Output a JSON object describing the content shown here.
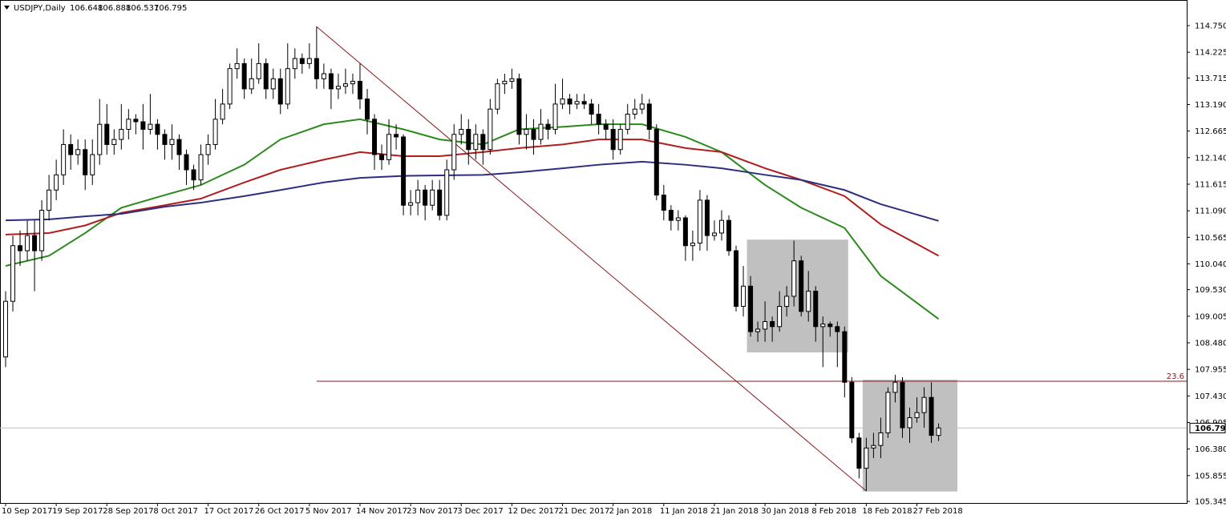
{
  "chart_data": {
    "type": "candlestick",
    "symbol": "USDJPY,Daily",
    "categories": [
      "10 Sep 2017",
      null,
      null,
      null,
      null,
      null,
      null,
      "19 Sep 2017",
      null,
      null,
      null,
      null,
      null,
      null,
      "28 Sep 2017",
      null,
      null,
      null,
      null,
      null,
      null,
      "8 Oct 2017",
      null,
      null,
      null,
      null,
      null,
      null,
      "17 Oct 2017",
      null,
      null,
      null,
      null,
      null,
      null,
      "26 Oct 2017",
      null,
      null,
      null,
      null,
      null,
      null,
      "5 Nov 2017",
      null,
      null,
      null,
      null,
      null,
      null,
      "14 Nov 2017",
      null,
      null,
      null,
      null,
      null,
      null,
      "23 Nov 2017",
      null,
      null,
      null,
      null,
      null,
      null,
      "3 Dec 2017",
      null,
      null,
      null,
      null,
      null,
      null,
      "12 Dec 2017",
      null,
      null,
      null,
      null,
      null,
      null,
      "21 Dec 2017",
      null,
      null,
      null,
      null,
      null,
      null,
      "2 Jan 2018",
      null,
      null,
      null,
      null,
      null,
      null,
      "11 Jan 2018",
      null,
      null,
      null,
      null,
      null,
      null,
      "21 Jan 2018",
      null,
      null,
      null,
      null,
      null,
      null,
      "30 Jan 2018",
      null,
      null,
      null,
      null,
      null,
      null,
      "8 Feb 2018",
      null,
      null,
      null,
      null,
      null,
      null,
      "18 Feb 2018",
      null,
      null,
      null,
      null,
      null,
      null,
      "27 Feb 2018",
      null,
      null,
      null
    ],
    "open": [
      108.2,
      109.3,
      110.4,
      110.3,
      110.6,
      110.3,
      111.1,
      111.5,
      111.8,
      112.4,
      112.2,
      112.3,
      111.8,
      112.2,
      112.8,
      112.4,
      112.5,
      112.7,
      112.9,
      112.85,
      112.7,
      112.8,
      112.6,
      112.4,
      112.5,
      112.2,
      111.9,
      111.7,
      112.2,
      112.4,
      112.9,
      113.2,
      113.9,
      114.0,
      113.5,
      113.7,
      114.0,
      113.5,
      113.7,
      113.2,
      113.9,
      114.1,
      114.0,
      114.1,
      113.7,
      113.8,
      113.5,
      113.55,
      113.6,
      113.65,
      113.3,
      112.9,
      112.2,
      112.1,
      112.6,
      112.55,
      111.2,
      111.25,
      111.5,
      111.2,
      111.5,
      111.0,
      111.9,
      112.6,
      112.7,
      112.3,
      112.6,
      112.3,
      113.1,
      113.6,
      113.65,
      113.7,
      112.6,
      112.7,
      112.5,
      112.8,
      112.7,
      113.2,
      113.3,
      113.2,
      113.25,
      113.2,
      113.0,
      112.8,
      112.7,
      112.3,
      112.7,
      113.0,
      113.1,
      113.2,
      112.7,
      111.4,
      111.1,
      110.9,
      110.95,
      110.4,
      110.45,
      111.3,
      110.6,
      110.65,
      110.9,
      110.3,
      109.2,
      109.6,
      108.7,
      108.75,
      108.9,
      108.8,
      109.2,
      109.4,
      110.1,
      109.1,
      109.5,
      108.8,
      108.85,
      108.8,
      108.7,
      107.7,
      106.6,
      106.0,
      106.4,
      106.45,
      106.7,
      107.5,
      107.7,
      106.8,
      107.0,
      107.1,
      107.4,
      106.648
    ],
    "high": [
      109.5,
      110.6,
      110.7,
      110.9,
      110.9,
      111.3,
      111.8,
      112.1,
      112.7,
      112.6,
      112.5,
      112.5,
      112.5,
      113.3,
      113.2,
      112.7,
      113.2,
      113.1,
      113.0,
      113.2,
      113.4,
      112.9,
      112.7,
      112.8,
      112.6,
      112.3,
      112.0,
      112.4,
      112.6,
      113.3,
      113.5,
      114.0,
      114.3,
      114.1,
      114.1,
      114.4,
      114.1,
      113.9,
      113.9,
      114.4,
      114.3,
      114.2,
      114.4,
      114.73,
      114.0,
      113.9,
      113.8,
      113.9,
      113.8,
      114.0,
      113.5,
      113.0,
      112.4,
      112.9,
      112.8,
      112.6,
      111.5,
      111.7,
      111.6,
      111.7,
      111.7,
      112.1,
      112.8,
      113.0,
      112.9,
      112.8,
      112.7,
      113.3,
      113.7,
      113.8,
      113.9,
      113.8,
      113.0,
      112.9,
      113.1,
      112.9,
      113.6,
      113.7,
      113.4,
      113.4,
      113.4,
      113.3,
      113.2,
      112.9,
      112.9,
      112.8,
      113.2,
      113.3,
      113.4,
      113.3,
      112.8,
      111.6,
      111.2,
      111.1,
      111.0,
      110.7,
      111.5,
      111.4,
      110.9,
      111.1,
      111.0,
      110.4,
      110.0,
      109.8,
      108.9,
      109.3,
      109.0,
      109.5,
      109.6,
      110.5,
      110.2,
      109.9,
      109.6,
      109.0,
      108.9,
      108.9,
      108.8,
      107.8,
      106.7,
      106.6,
      106.7,
      107.0,
      107.6,
      107.85,
      107.8,
      107.2,
      107.4,
      107.6,
      107.7,
      106.888
    ],
    "low": [
      108.0,
      109.1,
      110.0,
      110.1,
      109.5,
      110.1,
      110.9,
      111.3,
      111.6,
      111.9,
      112.0,
      111.5,
      111.6,
      112.0,
      112.2,
      112.2,
      112.3,
      112.5,
      112.6,
      112.3,
      112.6,
      112.3,
      112.1,
      112.1,
      111.9,
      111.6,
      111.5,
      111.6,
      112.0,
      112.3,
      112.8,
      113.1,
      113.7,
      113.3,
      113.4,
      113.6,
      113.3,
      113.3,
      113.0,
      113.1,
      113.7,
      113.8,
      113.9,
      113.5,
      113.5,
      113.1,
      113.3,
      113.4,
      113.4,
      113.1,
      112.6,
      111.9,
      111.9,
      112.0,
      112.3,
      111.0,
      111.0,
      111.0,
      110.9,
      111.1,
      110.9,
      110.9,
      111.7,
      112.4,
      112.0,
      112.1,
      112.0,
      112.2,
      113.0,
      113.4,
      113.5,
      112.4,
      112.3,
      112.2,
      112.4,
      112.5,
      112.6,
      113.1,
      113.0,
      113.1,
      113.1,
      112.8,
      112.6,
      112.5,
      112.1,
      112.2,
      112.6,
      112.9,
      113.0,
      112.5,
      111.3,
      110.9,
      110.7,
      110.7,
      110.1,
      110.1,
      110.3,
      110.3,
      110.5,
      110.5,
      110.2,
      109.1,
      109.0,
      108.6,
      108.5,
      108.5,
      108.5,
      108.7,
      109.0,
      109.2,
      109.0,
      108.9,
      108.5,
      108.0,
      108.6,
      108.0,
      107.4,
      106.5,
      105.8,
      105.55,
      106.2,
      106.2,
      106.6,
      107.3,
      106.6,
      106.5,
      106.9,
      106.8,
      106.5,
      106.537
    ],
    "close": [
      109.3,
      110.4,
      110.3,
      110.6,
      110.3,
      111.1,
      111.5,
      111.8,
      112.4,
      112.2,
      112.3,
      111.8,
      112.2,
      112.8,
      112.4,
      112.5,
      112.7,
      112.9,
      112.85,
      112.7,
      112.8,
      112.6,
      112.4,
      112.5,
      112.2,
      111.9,
      111.7,
      112.2,
      112.4,
      112.9,
      113.2,
      113.9,
      114.0,
      113.5,
      113.7,
      114.0,
      113.5,
      113.7,
      113.2,
      113.9,
      114.1,
      114.0,
      114.1,
      113.7,
      113.8,
      113.5,
      113.55,
      113.6,
      113.65,
      113.3,
      112.9,
      112.2,
      112.1,
      112.6,
      112.55,
      111.2,
      111.25,
      111.5,
      111.2,
      111.5,
      111.0,
      111.9,
      112.6,
      112.7,
      112.3,
      112.6,
      112.3,
      113.1,
      113.6,
      113.65,
      113.7,
      112.6,
      112.7,
      112.5,
      112.8,
      112.7,
      113.2,
      113.3,
      113.2,
      113.25,
      113.2,
      113.0,
      112.8,
      112.7,
      112.3,
      112.7,
      113.0,
      113.1,
      113.2,
      112.7,
      111.4,
      111.1,
      110.9,
      110.95,
      110.4,
      110.45,
      111.3,
      110.6,
      110.65,
      110.9,
      110.3,
      109.2,
      109.6,
      108.7,
      108.75,
      108.9,
      108.8,
      109.2,
      109.4,
      110.1,
      109.1,
      109.5,
      108.8,
      108.85,
      108.8,
      108.7,
      107.7,
      106.6,
      106.0,
      106.4,
      106.45,
      106.7,
      107.5,
      107.7,
      106.8,
      107.0,
      107.1,
      107.4,
      106.65,
      106.795
    ],
    "up_color": "#ffffff",
    "down_color": "#000000",
    "overlays": [
      {
        "color": "#2a8a1c",
        "x": [
          0,
          6,
          11,
          16,
          22,
          27,
          33,
          38,
          44,
          49,
          55,
          60,
          66,
          71,
          77,
          82,
          88,
          94,
          99,
          105,
          110,
          116,
          121,
          129
        ],
        "values": [
          110.0,
          110.2,
          110.65,
          111.15,
          111.4,
          111.6,
          112.0,
          112.5,
          112.8,
          112.9,
          112.7,
          112.5,
          112.4,
          112.7,
          112.75,
          112.8,
          112.8,
          112.55,
          112.25,
          111.6,
          111.15,
          110.75,
          109.8,
          108.95
        ]
      },
      {
        "color": "#b01e1e",
        "x": [
          0,
          6,
          11,
          16,
          22,
          27,
          33,
          38,
          44,
          49,
          55,
          60,
          66,
          71,
          77,
          82,
          88,
          94,
          99,
          105,
          110,
          116,
          121,
          129
        ],
        "values": [
          110.62,
          110.65,
          110.8,
          111.05,
          111.2,
          111.33,
          111.65,
          111.9,
          112.1,
          112.25,
          112.17,
          112.17,
          112.25,
          112.33,
          112.4,
          112.5,
          112.5,
          112.33,
          112.25,
          111.93,
          111.7,
          111.38,
          110.82,
          110.2
        ]
      },
      {
        "color": "#2e2e80",
        "x": [
          0,
          6,
          11,
          16,
          22,
          27,
          33,
          38,
          44,
          49,
          55,
          60,
          66,
          71,
          77,
          82,
          88,
          94,
          99,
          105,
          110,
          116,
          121,
          129
        ],
        "values": [
          110.9,
          110.92,
          110.98,
          111.03,
          111.17,
          111.25,
          111.38,
          111.5,
          111.65,
          111.74,
          111.78,
          111.79,
          111.8,
          111.85,
          111.93,
          112.0,
          112.06,
          112.0,
          111.93,
          111.8,
          111.7,
          111.5,
          111.22,
          110.89
        ]
      }
    ],
    "trendline": {
      "color": "#8b1a1a",
      "x": [
        43,
        119
      ],
      "values": [
        114.73,
        105.55
      ]
    },
    "fib_level": {
      "label": "23.6",
      "value": 107.72,
      "x_start": 43,
      "color": "#8b1a1a"
    },
    "boxes": [
      {
        "x": [
          102.5,
          116.5
        ],
        "values": [
          110.52,
          108.29
        ],
        "color": "#c0c0c0"
      },
      {
        "x": [
          118.5,
          131.6
        ],
        "values": [
          107.75,
          105.54
        ],
        "color": "#c0c0c0"
      }
    ],
    "ylim": [
      105.345,
      114.75
    ],
    "yticks": [
      {
        "value": 114.75,
        "label": "114.750"
      },
      114.225,
      113.715,
      {
        "value": 113.19,
        "label": "113.190"
      },
      112.665,
      {
        "value": 112.14,
        "label": "112.140"
      },
      111.615,
      {
        "value": 111.09,
        "label": "111.090"
      },
      110.565,
      {
        "value": 110.04,
        "label": "110.040"
      },
      {
        "value": 109.53,
        "label": "109.530"
      },
      109.005,
      {
        "value": 108.48,
        "label": "108.480"
      },
      107.955,
      {
        "value": 107.43,
        "label": "107.430"
      },
      106.905,
      {
        "value": 106.38,
        "label": "106.380"
      },
      105.855,
      105.345
    ]
  }
}
